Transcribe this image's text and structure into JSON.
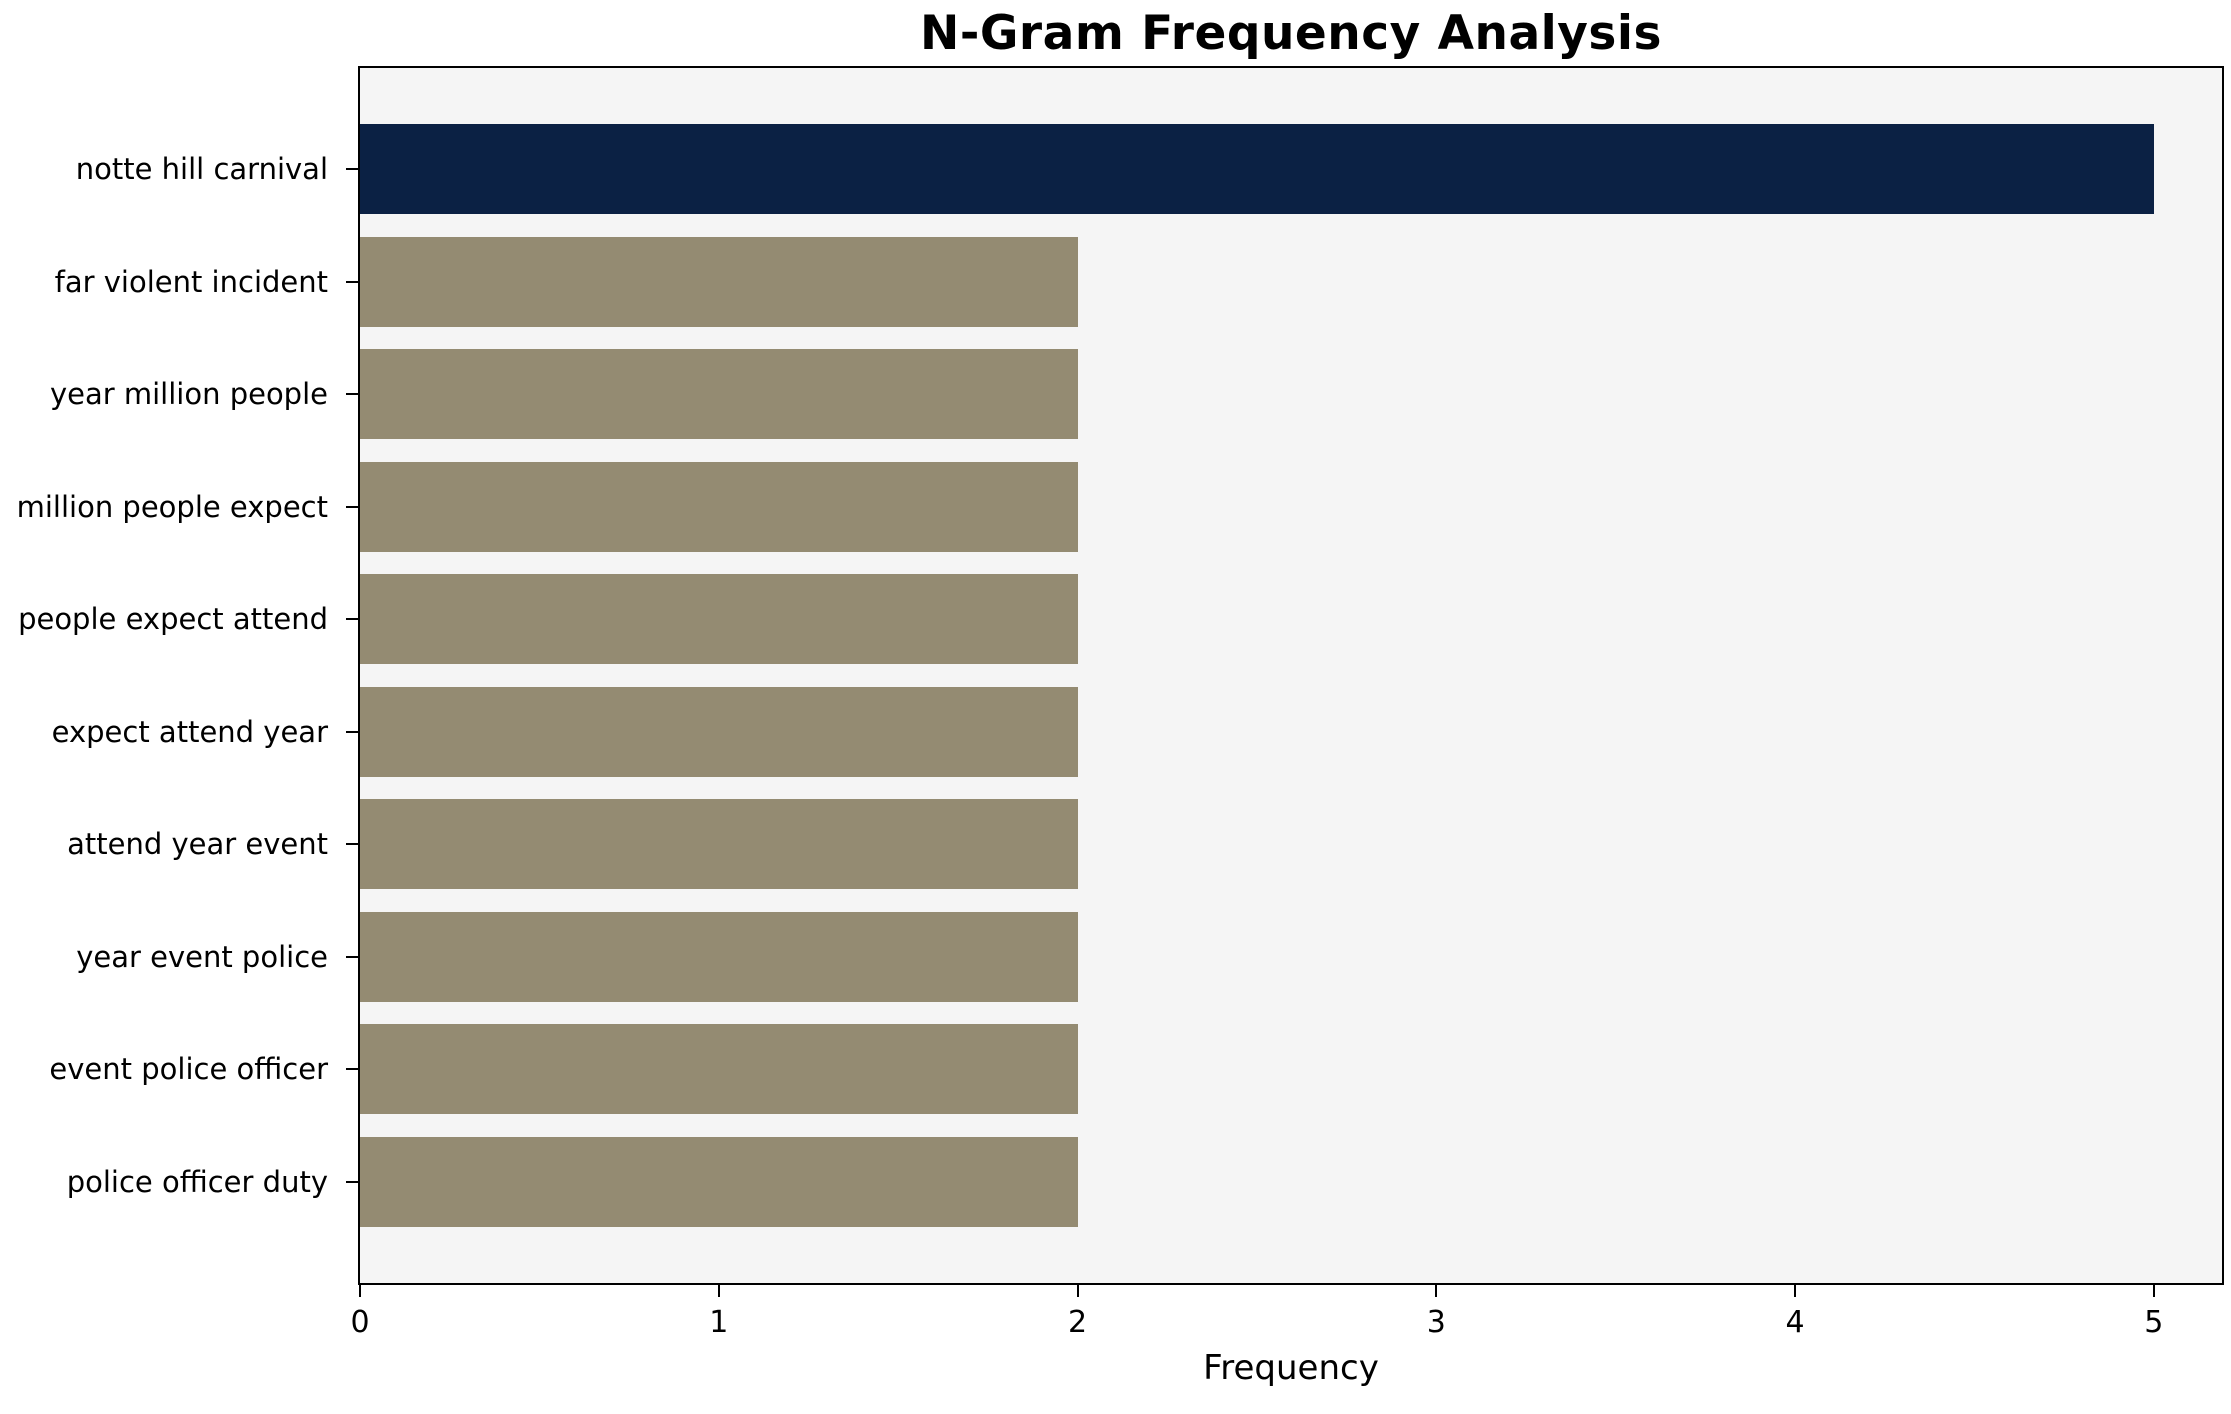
{
  "chart_data": {
    "type": "bar",
    "orientation": "horizontal",
    "title": "N-Gram Frequency Analysis",
    "xlabel": "Frequency",
    "ylabel": "",
    "categories": [
      "notte hill carnival",
      "far violent incident",
      "year million people",
      "million people expect",
      "people expect attend",
      "expect attend year",
      "attend year event",
      "year event police",
      "event police officer",
      "police officer duty"
    ],
    "values": [
      5,
      2,
      2,
      2,
      2,
      2,
      2,
      2,
      2,
      2
    ],
    "xticks": [
      0,
      1,
      2,
      3,
      4,
      5
    ],
    "xlim": [
      0,
      5.19
    ],
    "grid": false,
    "legend": null,
    "colors": {
      "highlight_bar": "#0b2144",
      "default_bar": "#948b72",
      "plot_background": "#f5f5f5",
      "figure_background": "#ffffff",
      "axis": "#000000",
      "text": "#000000"
    },
    "bar_colors": [
      "#0b2144",
      "#948b72",
      "#948b72",
      "#948b72",
      "#948b72",
      "#948b72",
      "#948b72",
      "#948b72",
      "#948b72",
      "#948b72"
    ]
  }
}
